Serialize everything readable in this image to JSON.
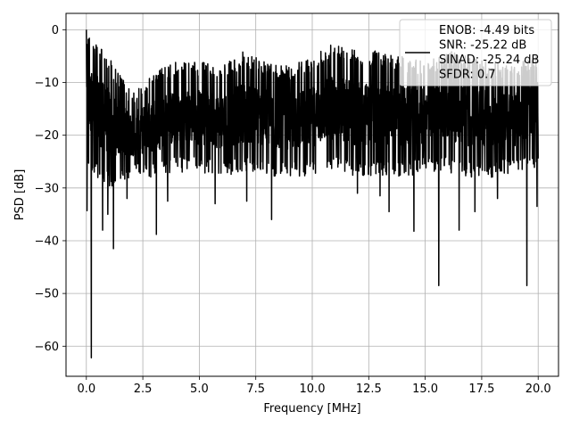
{
  "chart_data": {
    "type": "line",
    "title": "",
    "xlabel": "Frequency [MHz]",
    "ylabel": "PSD [dB]",
    "xlim": [
      -0.9,
      20.9
    ],
    "ylim": [
      -65.7,
      3.1
    ],
    "xticks": [
      0.0,
      2.5,
      5.0,
      7.5,
      10.0,
      12.5,
      15.0,
      17.5,
      20.0
    ],
    "xtick_labels": [
      "0.0",
      "2.5",
      "5.0",
      "7.5",
      "10.0",
      "12.5",
      "15.0",
      "17.5",
      "20.0"
    ],
    "yticks": [
      0,
      -10,
      -20,
      -30,
      -40,
      -50,
      -60
    ],
    "ytick_labels": [
      "0",
      "−10",
      "−20",
      "−30",
      "−40",
      "−50",
      "−60"
    ],
    "grid": true,
    "legend": {
      "placement": "upper-right",
      "entries": [
        "ENOB: -4.49 bits",
        "SNR: -25.22 dB",
        "SINAD: -25.24 dB",
        "SFDR: 0.7"
      ]
    },
    "series": [
      {
        "color": "#000000",
        "trace": {
          "x_start": 0.0,
          "x_end": 20.0,
          "upper_envelope_db": [
            0,
            -5,
            -12,
            -8,
            -6,
            -6,
            -7,
            -4,
            -6,
            -7,
            -5,
            -2,
            -4,
            -4,
            -5,
            -6,
            -4,
            -5,
            -6,
            -7,
            -4
          ],
          "lower_envelope_db": [
            -26,
            -30,
            -28,
            -28,
            -27,
            -27,
            -28,
            -27,
            -28,
            -28,
            -28,
            -27,
            -28,
            -28,
            -28,
            -27,
            -27,
            -28,
            -28,
            -27,
            -26
          ]
        },
        "deep_dips": [
          {
            "x": 0.03,
            "y": -34.3
          },
          {
            "x": 0.22,
            "y": -62.2
          },
          {
            "x": 0.35,
            "y": -27.0
          },
          {
            "x": 0.72,
            "y": -38.0
          },
          {
            "x": 0.95,
            "y": -35.0
          },
          {
            "x": 1.2,
            "y": -41.5
          },
          {
            "x": 1.8,
            "y": -32.0
          },
          {
            "x": 3.1,
            "y": -38.8
          },
          {
            "x": 3.6,
            "y": -32.5
          },
          {
            "x": 5.7,
            "y": -33.0
          },
          {
            "x": 7.1,
            "y": -32.5
          },
          {
            "x": 8.2,
            "y": -36.0
          },
          {
            "x": 12.0,
            "y": -31.0
          },
          {
            "x": 13.0,
            "y": -31.5
          },
          {
            "x": 13.4,
            "y": -34.5
          },
          {
            "x": 14.5,
            "y": -38.2
          },
          {
            "x": 15.6,
            "y": -48.5
          },
          {
            "x": 16.5,
            "y": -38.0
          },
          {
            "x": 17.2,
            "y": -34.5
          },
          {
            "x": 18.2,
            "y": -32.0
          },
          {
            "x": 19.5,
            "y": -48.5
          },
          {
            "x": 19.95,
            "y": -33.5
          }
        ]
      }
    ]
  }
}
